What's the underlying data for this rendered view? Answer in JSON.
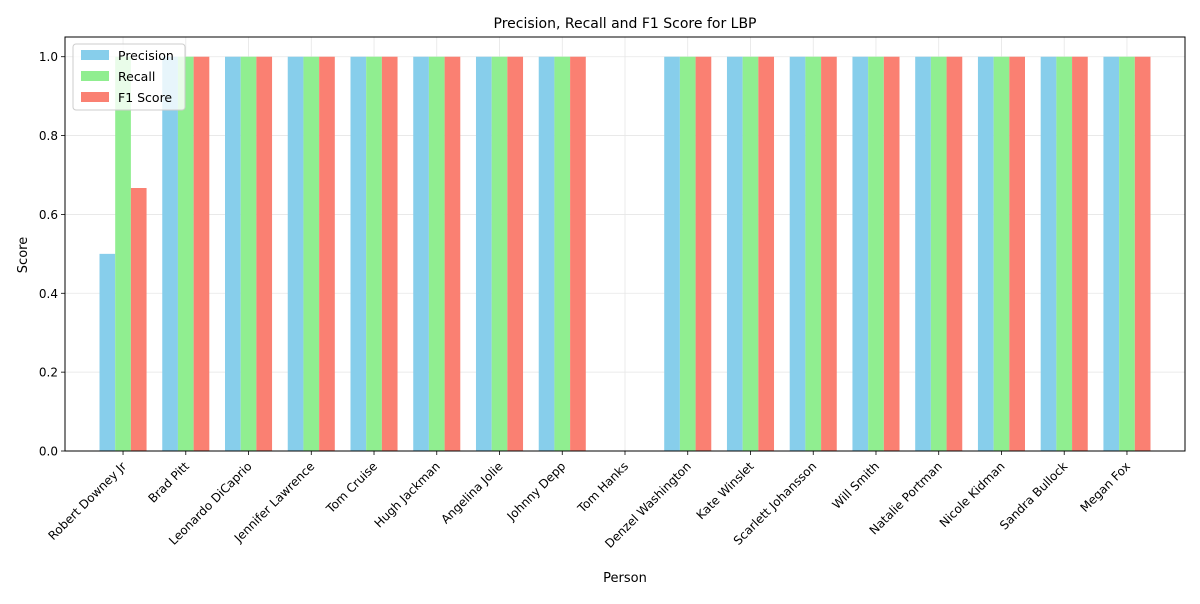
{
  "chart_data": {
    "type": "bar",
    "title": "Precision, Recall and F1 Score for LBP",
    "xlabel": "Person",
    "ylabel": "Score",
    "ylim": [
      0,
      1.05
    ],
    "yticks": [
      "0.0",
      "0.2",
      "0.4",
      "0.6",
      "0.8",
      "1.0"
    ],
    "grid": true,
    "legend_position": "top-left",
    "categories": [
      "Robert Downey Jr",
      "Brad Pitt",
      "Leonardo DiCaprio",
      "Jennifer Lawrence",
      "Tom Cruise",
      "Hugh Jackman",
      "Angelina Jolie",
      "Johnny Depp",
      "Tom Hanks",
      "Denzel Washington",
      "Kate Winslet",
      "Scarlett Johansson",
      "Will Smith",
      "Natalie Portman",
      "Nicole Kidman",
      "Sandra Bullock",
      "Megan Fox"
    ],
    "series": [
      {
        "name": "Precision",
        "color": "#87ceeb",
        "values": [
          0.5,
          1,
          1,
          1,
          1,
          1,
          1,
          1,
          0,
          1,
          1,
          1,
          1,
          1,
          1,
          1,
          1
        ]
      },
      {
        "name": "Recall",
        "color": "#90ee90",
        "values": [
          1,
          1,
          1,
          1,
          1,
          1,
          1,
          1,
          0,
          1,
          1,
          1,
          1,
          1,
          1,
          1,
          1
        ]
      },
      {
        "name": "F1 Score",
        "color": "#fa8072",
        "values": [
          0.667,
          1,
          1,
          1,
          1,
          1,
          1,
          1,
          0,
          1,
          1,
          1,
          1,
          1,
          1,
          1,
          1
        ]
      }
    ]
  }
}
